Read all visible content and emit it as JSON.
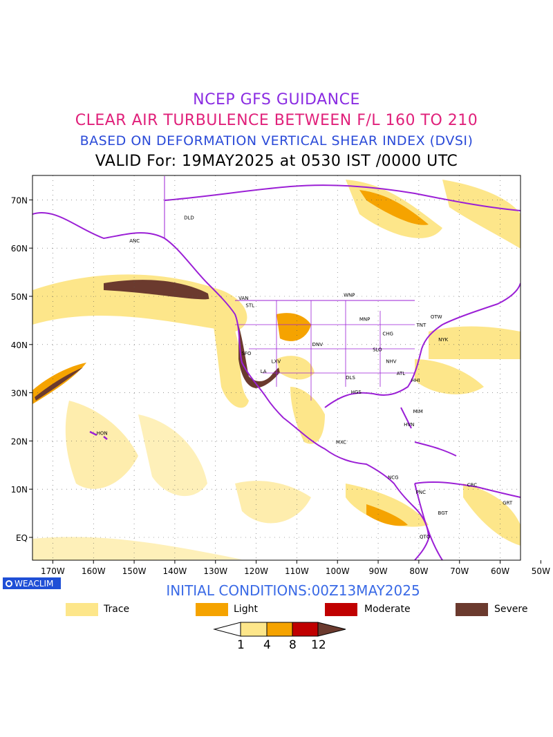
{
  "titles": {
    "line1": "NCEP GFS GUIDANCE",
    "line2": "CLEAR AIR TURBULENCE BETWEEN F/L 160 TO 210",
    "line3": "BASED ON DEFORMATION VERTICAL SHEAR INDEX (DVSI)",
    "line4": "VALID For: 19MAY2025 at 0530 IST /0000 UTC"
  },
  "map": {
    "lat_labels": [
      "70N",
      "60N",
      "50N",
      "40N",
      "30N",
      "20N",
      "10N",
      "EQ"
    ],
    "lon_labels": [
      "170W",
      "160W",
      "150W",
      "140W",
      "130W",
      "120W",
      "110W",
      "100W",
      "90W",
      "80W",
      "70W",
      "60W",
      "50W"
    ],
    "stations": [
      {
        "code": "ANC",
        "lon": -149.9,
        "lat": 61.2
      },
      {
        "code": "DLD",
        "lon": -136.5,
        "lat": 66.0
      },
      {
        "code": "VAN",
        "lon": -123.1,
        "lat": 49.3
      },
      {
        "code": "STL",
        "lon": -121.5,
        "lat": 47.8
      },
      {
        "code": "WNP",
        "lon": -97.1,
        "lat": 49.9
      },
      {
        "code": "MNP",
        "lon": -93.3,
        "lat": 44.9
      },
      {
        "code": "CHG",
        "lon": -87.6,
        "lat": 41.9
      },
      {
        "code": "TNT",
        "lon": -79.4,
        "lat": 43.7
      },
      {
        "code": "OTW",
        "lon": -75.7,
        "lat": 45.4
      },
      {
        "code": "NYK",
        "lon": -74.0,
        "lat": 40.7
      },
      {
        "code": "DNV",
        "lon": -104.9,
        "lat": 39.7
      },
      {
        "code": "SLO",
        "lon": -90.2,
        "lat": 38.6
      },
      {
        "code": "LXV",
        "lon": -115.1,
        "lat": 36.2
      },
      {
        "code": "SFO",
        "lon": -122.4,
        "lat": 37.8
      },
      {
        "code": "LA",
        "lon": -118.2,
        "lat": 34.1
      },
      {
        "code": "NHV",
        "lon": -86.8,
        "lat": 36.2
      },
      {
        "code": "ATL",
        "lon": -84.4,
        "lat": 33.7
      },
      {
        "code": "HHI",
        "lon": -80.8,
        "lat": 32.2
      },
      {
        "code": "DLS",
        "lon": -96.8,
        "lat": 32.8
      },
      {
        "code": "HGS",
        "lon": -95.4,
        "lat": 29.8
      },
      {
        "code": "MIM",
        "lon": -80.2,
        "lat": 25.8
      },
      {
        "code": "HVN",
        "lon": -82.4,
        "lat": 23.1
      },
      {
        "code": "HON",
        "lon": -157.9,
        "lat": 21.3
      },
      {
        "code": "MXC",
        "lon": -99.1,
        "lat": 19.4
      },
      {
        "code": "NCG",
        "lon": -86.3,
        "lat": 12.1
      },
      {
        "code": "PNC",
        "lon": -79.5,
        "lat": 9.0
      },
      {
        "code": "CRC",
        "lon": -66.9,
        "lat": 10.5
      },
      {
        "code": "BGT",
        "lon": -74.1,
        "lat": 4.7
      },
      {
        "code": "GRT",
        "lon": -58.2,
        "lat": 6.8
      },
      {
        "code": "QTO",
        "lon": -78.5,
        "lat": -0.2
      }
    ]
  },
  "badge": "WEACLIM",
  "initial_conditions": "INITIAL CONDITIONS:00Z13MAY2025",
  "legend": [
    {
      "label": "Trace",
      "color": "#fde68a"
    },
    {
      "label": "Light",
      "color": "#f5a300"
    },
    {
      "label": "Moderate",
      "color": "#c00000"
    },
    {
      "label": "Severe",
      "color": "#6b3a2e"
    }
  ],
  "colorbar": {
    "ticks": [
      "1",
      "4",
      "8",
      "12"
    ],
    "colors": [
      "#ffffff",
      "#fde68a",
      "#f5a300",
      "#c00000",
      "#6b3a2e"
    ]
  }
}
